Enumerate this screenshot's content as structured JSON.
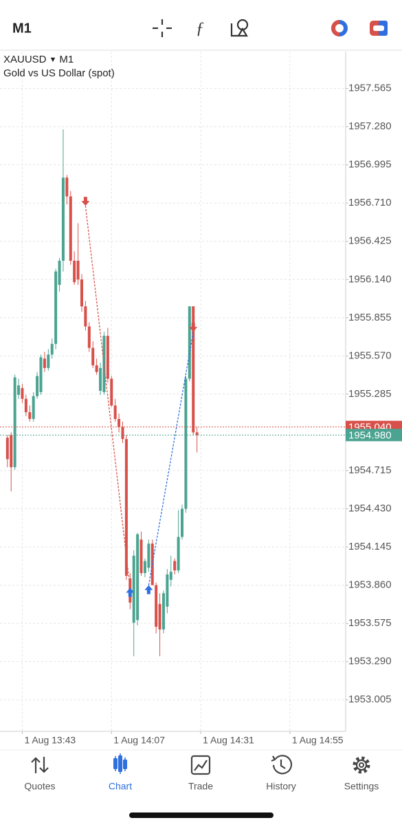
{
  "header": {
    "timeframe": "M1"
  },
  "chart_data": {
    "type": "candlestick",
    "symbol": "XAUUSD",
    "timeframe": "M1",
    "description": "Gold vs US Dollar (spot)",
    "x": [
      "1 Aug 13:39",
      "1 Aug 13:40",
      "1 Aug 13:41",
      "1 Aug 13:42",
      "1 Aug 13:43",
      "1 Aug 13:44",
      "1 Aug 13:45",
      "1 Aug 13:46",
      "1 Aug 13:47",
      "1 Aug 13:48",
      "1 Aug 13:49",
      "1 Aug 13:50",
      "1 Aug 13:51",
      "1 Aug 13:52",
      "1 Aug 13:53",
      "1 Aug 13:54",
      "1 Aug 13:55",
      "1 Aug 13:56",
      "1 Aug 13:57",
      "1 Aug 13:58",
      "1 Aug 13:59",
      "1 Aug 14:00",
      "1 Aug 14:01",
      "1 Aug 14:02",
      "1 Aug 14:03",
      "1 Aug 14:04",
      "1 Aug 14:05",
      "1 Aug 14:06",
      "1 Aug 14:07",
      "1 Aug 14:08",
      "1 Aug 14:09",
      "1 Aug 14:10",
      "1 Aug 14:11",
      "1 Aug 14:12",
      "1 Aug 14:13",
      "1 Aug 14:14",
      "1 Aug 14:15",
      "1 Aug 14:16",
      "1 Aug 14:17",
      "1 Aug 14:18",
      "1 Aug 14:19",
      "1 Aug 14:20",
      "1 Aug 14:21",
      "1 Aug 14:22",
      "1 Aug 14:23",
      "1 Aug 14:24",
      "1 Aug 14:25",
      "1 Aug 14:26",
      "1 Aug 14:27",
      "1 Aug 14:28",
      "1 Aug 14:29",
      "1 Aug 14:30"
    ],
    "open": [
      1954.96,
      1954.98,
      1954.74,
      1955.28,
      1955.33,
      1955.25,
      1955.15,
      1955.1,
      1955.27,
      1955.3,
      1955.55,
      1955.48,
      1955.58,
      1955.66,
      1956.1,
      1956.28,
      1956.9,
      1956.76,
      1956.28,
      1956.28,
      1956.14,
      1955.94,
      1955.79,
      1955.63,
      1955.5,
      1955.31,
      1955.3,
      1955.72,
      1955.4,
      1955.2,
      1955.1,
      1955.04,
      1954.95,
      1953.91,
      1953.58,
      1953.6,
      1954.2,
      1953.95,
      1953.99,
      1954.17,
      1953.86,
      1953.72,
      1953.53,
      1953.7,
      1953.9,
      1954.04,
      1953.97,
      1954.22,
      1954.43,
      1955.4,
      1955.94,
      1955.0
    ],
    "high": [
      1954.98,
      1955.0,
      1955.43,
      1955.4,
      1955.36,
      1955.28,
      1955.2,
      1955.3,
      1955.45,
      1955.58,
      1955.6,
      1955.62,
      1955.7,
      1956.22,
      1956.3,
      1957.26,
      1956.92,
      1956.8,
      1956.35,
      1956.56,
      1956.18,
      1955.98,
      1955.82,
      1955.68,
      1955.55,
      1955.52,
      1955.75,
      1955.78,
      1955.42,
      1955.25,
      1955.14,
      1955.08,
      1954.98,
      1953.95,
      1954.12,
      1954.25,
      1954.26,
      1954.06,
      1954.2,
      1954.2,
      1953.88,
      1953.8,
      1953.82,
      1953.98,
      1954.08,
      1954.06,
      1954.42,
      1954.46,
      1955.42,
      1955.94,
      1955.94,
      1955.04
    ],
    "low": [
      1954.74,
      1954.56,
      1954.72,
      1955.25,
      1955.22,
      1955.12,
      1955.08,
      1955.08,
      1955.25,
      1955.28,
      1955.45,
      1955.46,
      1955.55,
      1955.62,
      1956.05,
      1956.2,
      1956.7,
      1956.25,
      1956.1,
      1956.1,
      1955.9,
      1955.76,
      1955.6,
      1955.48,
      1955.43,
      1955.28,
      1955.28,
      1955.37,
      1955.19,
      1955.08,
      1955.0,
      1954.92,
      1953.9,
      1953.68,
      1953.33,
      1953.56,
      1953.93,
      1953.92,
      1953.96,
      1953.86,
      1953.5,
      1953.33,
      1953.5,
      1953.65,
      1953.85,
      1953.94,
      1953.95,
      1954.2,
      1954.4,
      1955.38,
      1954.98,
      1954.85
    ],
    "close": [
      1954.8,
      1954.74,
      1955.41,
      1955.35,
      1955.25,
      1955.15,
      1955.1,
      1955.27,
      1955.42,
      1955.56,
      1955.48,
      1955.58,
      1955.66,
      1956.2,
      1956.28,
      1956.9,
      1956.76,
      1956.28,
      1956.12,
      1956.14,
      1955.94,
      1955.79,
      1955.63,
      1955.5,
      1955.45,
      1955.48,
      1955.72,
      1955.4,
      1955.2,
      1955.1,
      1955.04,
      1954.95,
      1953.93,
      1953.73,
      1954.08,
      1954.24,
      1953.95,
      1954.04,
      1954.17,
      1953.86,
      1953.55,
      1953.53,
      1953.8,
      1953.94,
      1953.96,
      1953.97,
      1954.22,
      1954.43,
      1955.4,
      1955.94,
      1955.0,
      1954.98
    ],
    "up_color": "#4ba391",
    "down_color": "#d8504a",
    "ylim": [
      1952.77,
      1957.84
    ],
    "yticks": [
      1957.565,
      {
        "value": 1957.28,
        "label": "1957.280"
      },
      1956.995,
      {
        "value": 1956.71,
        "label": "1956.710"
      },
      1956.425,
      {
        "value": 1956.14,
        "label": "1956.140"
      },
      1955.855,
      {
        "value": 1955.57,
        "label": "1955.570"
      },
      1955.285,
      1954.715,
      {
        "value": 1954.43,
        "label": "1954.430"
      },
      1954.145,
      {
        "value": 1953.86,
        "label": "1953.860"
      },
      1953.575,
      {
        "value": 1953.29,
        "label": "1953.290"
      },
      1953.005
    ],
    "xlim": [
      "1 Aug 13:37",
      "1 Aug 15:10"
    ],
    "xticks": [
      "1 Aug 13:43",
      "1 Aug 14:07",
      "1 Aug 14:31",
      "1 Aug 14:55"
    ],
    "grid": true,
    "price_lines": [
      {
        "value": 1955.04,
        "label": "1955.040",
        "color": "#d8504a"
      },
      {
        "value": 1954.98,
        "label": "1954.980",
        "color": "#4ba391"
      }
    ],
    "side_colors": {
      "buy": "#2f6fe0",
      "sell": "#d8504a"
    },
    "positions": [
      {
        "side": "sell",
        "open": {
          "time": "1 Aug 14:00",
          "price": 1956.69
        },
        "close": {
          "time": "1 Aug 14:12",
          "price": 1953.84
        }
      },
      {
        "side": "buy",
        "open": {
          "time": "1 Aug 14:17",
          "price": 1953.86
        },
        "close": {
          "time": "1 Aug 14:29",
          "price": 1955.75
        }
      }
    ]
  },
  "nav": {
    "items": [
      "Quotes",
      "Chart",
      "Trade",
      "History",
      "Settings"
    ],
    "active": 1
  }
}
